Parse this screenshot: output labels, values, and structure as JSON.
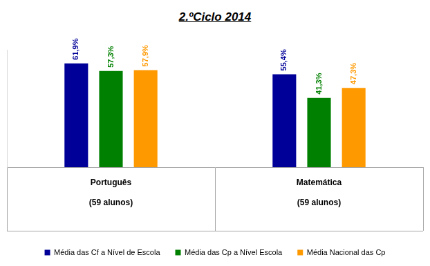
{
  "chart_data": {
    "type": "bar",
    "title": "2.ºCiclo 2014",
    "categories": [
      [
        "Português",
        "(59 alunos)"
      ],
      [
        "Matemática",
        "(59 alunos)"
      ]
    ],
    "series": [
      {
        "name": "Média das Cf a Nível de Escola",
        "color": "#000099",
        "values": [
          61.9,
          55.4
        ],
        "value_labels": [
          "61,9%",
          "55,4%"
        ]
      },
      {
        "name": "Média das Cp a Nível Escola",
        "color": "#008000",
        "values": [
          57.3,
          41.3
        ],
        "value_labels": [
          "57,3%",
          "41,3%"
        ]
      },
      {
        "name": "Média Nacional das Cp",
        "color": "#ff9900",
        "values": [
          57.9,
          47.3
        ],
        "value_labels": [
          "57,9%",
          "47,3%"
        ]
      }
    ],
    "ylim": [
      0,
      70
    ],
    "grid": false,
    "legend": "bottom",
    "data_labels": true,
    "tick_labels": "x"
  }
}
